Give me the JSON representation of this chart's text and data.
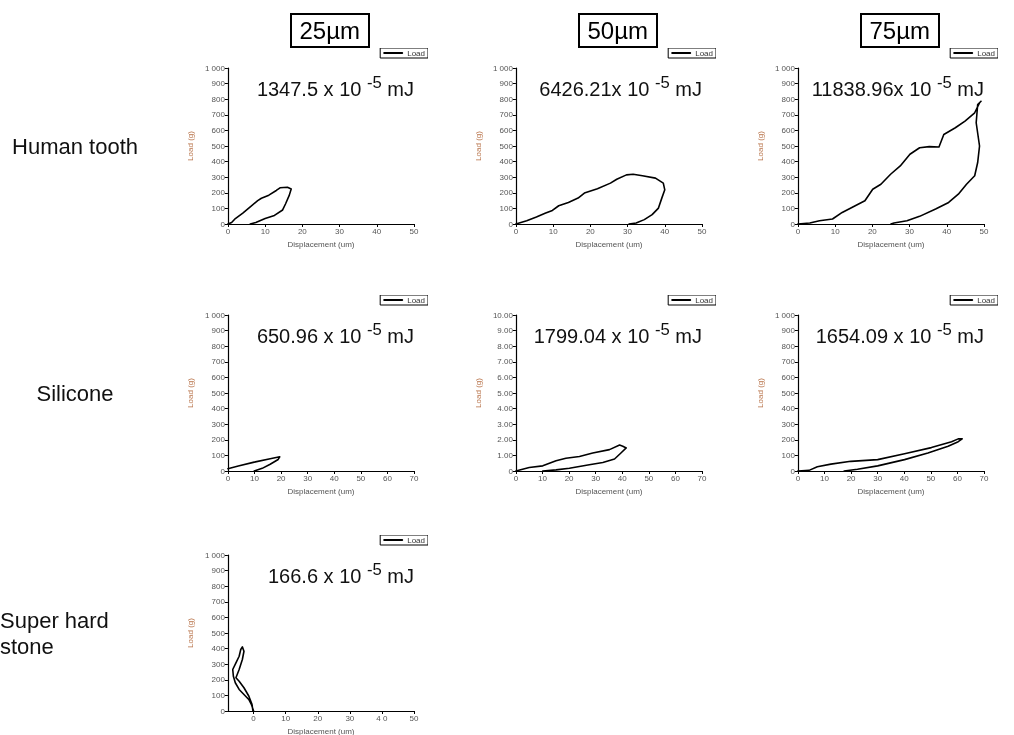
{
  "chart_data": [
    {
      "type": "line",
      "title": "25µm",
      "xlabel": "Displacement (um)",
      "ylabel": "Load (g)",
      "legend": "top right",
      "annotations": [
        "1347.5 x 10 $^{-5}$ mJ",
        "Human tooth"
      ],
      "xlim": [
        0,
        50
      ],
      "xticks": [
        0,
        10,
        20,
        30,
        40,
        50
      ],
      "ylim": [
        0,
        1000
      ],
      "yticks": [
        0,
        100,
        200,
        300,
        400,
        500,
        600,
        700,
        800,
        900,
        {
          "value": 1000,
          "label": "1 000"
        }
      ],
      "series": [
        {
          "name": "Load",
          "color": "#000000",
          "x": [
            0,
            1,
            2,
            4,
            6,
            8,
            9,
            11,
            13,
            14,
            16,
            17,
            16.5,
            15.5,
            14.7,
            12.5,
            10,
            7.5,
            6
          ],
          "values": [
            0,
            10,
            35,
            70,
            110,
            150,
            165,
            185,
            215,
            232,
            236,
            225,
            185,
            130,
            90,
            55,
            35,
            10,
            0
          ]
        }
      ]
    },
    {
      "type": "line",
      "title": "50µm",
      "xlabel": "Displacement (um)",
      "ylabel": "Load (g)",
      "legend": "top right",
      "annotations": [
        "6426.21x 10 $^{-5}$ mJ"
      ],
      "xlim": [
        0,
        50
      ],
      "xticks": [
        0,
        10,
        20,
        30,
        40,
        50
      ],
      "ylim": [
        0,
        1000
      ],
      "yticks": [
        0,
        100,
        200,
        300,
        400,
        500,
        600,
        700,
        800,
        900,
        {
          "value": 1000,
          "label": "1 000"
        }
      ],
      "series": [
        {
          "name": "Load",
          "color": "#000000",
          "x": [
            0,
            2.9,
            5.5,
            8,
            9.8,
            11.5,
            14.1,
            16.7,
            18.4,
            21.9,
            25.4,
            27.1,
            29.7,
            31.5,
            34,
            37.5,
            39.6,
            40,
            39.2,
            38.3,
            36.6,
            34.5,
            32.3,
            30.4
          ],
          "values": [
            0,
            21,
            45,
            70,
            87,
            117,
            138,
            166,
            198,
            226,
            262,
            287,
            315,
            319,
            309,
            294,
            262,
            219,
            166,
            102,
            60,
            28,
            6,
            0
          ]
        }
      ]
    },
    {
      "type": "line",
      "title": "75µm",
      "xlabel": "Displacement (um)",
      "ylabel": "Load (g)",
      "legend": "top right",
      "annotations": [
        "11838.96x 10 $^{-5}$ mJ"
      ],
      "xlim": [
        0,
        50
      ],
      "xticks": [
        0,
        10,
        20,
        30,
        40,
        50
      ],
      "ylim": [
        0,
        1000
      ],
      "yticks": [
        0,
        100,
        200,
        300,
        400,
        500,
        600,
        700,
        800,
        900,
        {
          "value": 1000,
          "label": "1 000"
        }
      ],
      "series": [
        {
          "name": "Load",
          "color": "#000000",
          "x": [
            0,
            3.2,
            5.8,
            9.3,
            11.9,
            15.4,
            18,
            20.1,
            22.3,
            24.9,
            27.5,
            30.1,
            32.7,
            35.3,
            37.9,
            39.2,
            42.3,
            44.9,
            47.5,
            48.8,
            49.2,
            48.3,
            47.9,
            48.8,
            48.3,
            47.5,
            45.3,
            43.1,
            40.5,
            37,
            32.7,
            29.3,
            25.8,
            25
          ],
          "values": [
            0,
            6,
            21,
            32,
            74,
            117,
            149,
            223,
            255,
            319,
            372,
            447,
            489,
            496,
            494,
            574,
            617,
            660,
            713,
            777,
            787,
            766,
            649,
            500,
            394,
            309,
            255,
            191,
            138,
            96,
            49,
            21,
            6,
            0
          ]
        }
      ]
    },
    {
      "type": "line",
      "xlabel": "Displacement (um)",
      "ylabel": "Load (g)",
      "legend": "top right",
      "annotations": [
        "650.96 x 10 $^{-5}$ mJ",
        "Silicone"
      ],
      "xlim": [
        0,
        70
      ],
      "xticks": [
        0,
        10,
        20,
        30,
        40,
        50,
        60,
        70
      ],
      "ylim": [
        0,
        1000
      ],
      "yticks": [
        0,
        100,
        200,
        300,
        400,
        500,
        600,
        700,
        800,
        900,
        {
          "value": 1000,
          "label": "1 000"
        }
      ],
      "series": [
        {
          "name": "Load",
          "color": "#000000",
          "x": [
            0,
            3.9,
            9.9,
            15.9,
            19.5,
            18.9,
            15.9,
            12.9,
            9.9
          ],
          "values": [
            15,
            32,
            57,
            79,
            91,
            74,
            43,
            17,
            0
          ]
        }
      ]
    },
    {
      "type": "line",
      "xlabel": "Displacement (um)",
      "ylabel": "Load (g)",
      "legend": "top right",
      "annotations": [
        "1799.04 x 10 $^{-5}$ mJ"
      ],
      "xlim": [
        0,
        70
      ],
      "xticks": [
        0,
        10,
        20,
        30,
        40,
        50,
        60,
        70
      ],
      "ylim": [
        0,
        10
      ],
      "yticks": [
        0,
        {
          "value": 1,
          "label": "1.00"
        },
        {
          "value": 2,
          "label": "2.00"
        },
        {
          "value": 3,
          "label": "3.00"
        },
        {
          "value": 4,
          "label": "4.00"
        },
        {
          "value": 5,
          "label": "5.00"
        },
        {
          "value": 6,
          "label": "6.00"
        },
        {
          "value": 7,
          "label": "7.00"
        },
        {
          "value": 8,
          "label": "8.00"
        },
        {
          "value": 9,
          "label": "9.00"
        },
        {
          "value": 10,
          "label": "10.00"
        }
      ],
      "series": [
        {
          "name": "Load",
          "color": "#000000",
          "x": [
            0,
            5,
            10.1,
            15.1,
            18.8,
            23.9,
            28.9,
            35.2,
            39,
            40.2,
            41.5,
            39.6,
            37.1,
            32.7,
            27.6,
            20.1,
            15.1,
            10.1
          ],
          "values": [
            0,
            0.22,
            0.33,
            0.66,
            0.82,
            0.93,
            1.15,
            1.37,
            1.66,
            1.59,
            1.48,
            1.17,
            0.77,
            0.55,
            0.4,
            0.18,
            0.07,
            0
          ]
        }
      ]
    },
    {
      "type": "line",
      "xlabel": "Displacement (um)",
      "ylabel": "Load (g)",
      "legend": "top right",
      "annotations": [
        "1654.09 x 10 $^{-5}$ mJ"
      ],
      "xlim": [
        0,
        70
      ],
      "xticks": [
        0,
        10,
        20,
        30,
        40,
        50,
        60,
        70
      ],
      "ylim": [
        0,
        1000
      ],
      "yticks": [
        0,
        100,
        200,
        300,
        400,
        500,
        600,
        700,
        800,
        900,
        {
          "value": 1000,
          "label": "1 000"
        }
      ],
      "series": [
        {
          "name": "Load",
          "color": "#000000",
          "x": [
            0,
            4.2,
            7.3,
            12.4,
            19.9,
            30,
            40.1,
            50.2,
            57.8,
            60.3,
            61.8,
            60.3,
            56.5,
            48.9,
            40.1,
            30,
            22.4,
            17.4
          ],
          "values": [
            0,
            4,
            27,
            44,
            62,
            73,
            111,
            150,
            188,
            206,
            206,
            188,
            159,
            115,
            73,
            33,
            11,
            0
          ]
        }
      ]
    },
    {
      "type": "line",
      "xlabel": "Displacement (um)",
      "ylabel": "Load (g)",
      "legend": "top right",
      "annotations": [
        "166.6 x 10 $^{-5}$ mJ",
        "Super hard stone"
      ],
      "xlim": [
        -8,
        50
      ],
      "xticks": [
        0,
        10,
        20,
        30,
        {
          "value": 40,
          "label": "4 0"
        },
        50
      ],
      "ylim": [
        0,
        1000
      ],
      "yticks": [
        0,
        100,
        200,
        300,
        400,
        500,
        600,
        700,
        800,
        900,
        {
          "value": 1000,
          "label": "1 000"
        }
      ],
      "series": [
        {
          "name": "Load",
          "color": "#000000",
          "x": [
            0,
            -0.7,
            -1.5,
            -3,
            -4.5,
            -5.7,
            -6.3,
            -6.5,
            -5.5,
            -4.5,
            -4,
            -3.5,
            -3,
            -3.5,
            -4.5,
            -5.5,
            -4.5,
            -3,
            -1.5,
            -0.5,
            -0.2
          ],
          "values": [
            0,
            43,
            74,
            106,
            138,
            181,
            223,
            266,
            309,
            351,
            394,
            411,
            383,
            330,
            266,
            213,
            191,
            149,
            96,
            43,
            0
          ]
        }
      ]
    }
  ]
}
